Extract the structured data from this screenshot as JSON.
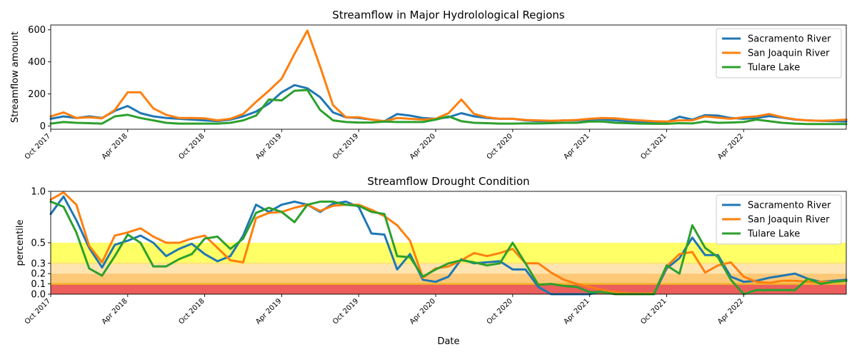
{
  "chart_data": [
    {
      "type": "line",
      "title": "Streamflow in Major Hydrolological Regions",
      "xlabel": "",
      "ylabel": "Streamflow amount",
      "xlim": [
        "2017-10",
        "2022-12"
      ],
      "ylim": [
        -20,
        630
      ],
      "yticks": [
        0,
        200,
        400,
        600
      ],
      "xticks": [
        "2017-10",
        "2018-04",
        "2018-10",
        "2019-04",
        "2019-10",
        "2020-04",
        "2020-10",
        "2021-04",
        "2021-10",
        "2022-04"
      ],
      "xtick_labels": [
        "Oct 2017",
        "Apr 2018",
        "Oct 2018",
        "Apr 2019",
        "Oct 2019",
        "Apr 2020",
        "Oct 2020",
        "Apr 2021",
        "Oct 2021",
        "Apr 2022"
      ],
      "legend": "top-right",
      "x": [
        "2017-10",
        "2017-11",
        "2017-12",
        "2018-01",
        "2018-02",
        "2018-03",
        "2018-04",
        "2018-05",
        "2018-06",
        "2018-07",
        "2018-08",
        "2018-09",
        "2018-10",
        "2018-11",
        "2018-12",
        "2019-01",
        "2019-02",
        "2019-03",
        "2019-04",
        "2019-05",
        "2019-06",
        "2019-07",
        "2019-08",
        "2019-09",
        "2019-10",
        "2019-11",
        "2019-12",
        "2020-01",
        "2020-02",
        "2020-03",
        "2020-04",
        "2020-05",
        "2020-06",
        "2020-07",
        "2020-08",
        "2020-09",
        "2020-10",
        "2020-11",
        "2020-12",
        "2021-01",
        "2021-02",
        "2021-03",
        "2021-04",
        "2021-05",
        "2021-06",
        "2021-07",
        "2021-08",
        "2021-09",
        "2021-10",
        "2021-11",
        "2021-12",
        "2022-01",
        "2022-02",
        "2022-03",
        "2022-04",
        "2022-05",
        "2022-06",
        "2022-07",
        "2022-08",
        "2022-09",
        "2022-10",
        "2022-11",
        "2022-12"
      ],
      "series": [
        {
          "name": "Sacramento River",
          "color": "#1f77b4",
          "values": [
            45,
            60,
            50,
            60,
            50,
            95,
            125,
            80,
            60,
            50,
            45,
            40,
            35,
            30,
            40,
            60,
            90,
            140,
            210,
            255,
            235,
            180,
            85,
            55,
            50,
            40,
            30,
            75,
            65,
            50,
            45,
            55,
            80,
            60,
            50,
            45,
            45,
            35,
            30,
            30,
            35,
            35,
            40,
            42,
            35,
            30,
            28,
            26,
            24,
            58,
            40,
            68,
            65,
            50,
            45,
            50,
            62,
            52,
            40,
            35,
            32,
            30,
            28
          ]
        },
        {
          "name": "San Joaquin River",
          "color": "#ff7f0e",
          "values": [
            60,
            85,
            50,
            55,
            48,
            100,
            210,
            210,
            110,
            70,
            50,
            50,
            48,
            35,
            45,
            75,
            150,
            220,
            295,
            450,
            595,
            370,
            130,
            55,
            55,
            40,
            30,
            50,
            45,
            40,
            45,
            80,
            165,
            75,
            55,
            45,
            45,
            38,
            35,
            33,
            35,
            38,
            45,
            50,
            48,
            40,
            35,
            30,
            28,
            35,
            35,
            60,
            52,
            45,
            55,
            60,
            75,
            55,
            42,
            35,
            33,
            35,
            40
          ]
        },
        {
          "name": "Tulare Lake",
          "color": "#2ca02c",
          "values": [
            15,
            25,
            20,
            18,
            15,
            60,
            70,
            50,
            35,
            20,
            15,
            15,
            15,
            15,
            20,
            35,
            65,
            165,
            160,
            220,
            225,
            100,
            35,
            25,
            22,
            22,
            28,
            25,
            25,
            25,
            40,
            60,
            30,
            20,
            18,
            15,
            15,
            17,
            16,
            18,
            20,
            20,
            28,
            28,
            20,
            18,
            15,
            14,
            14,
            18,
            16,
            28,
            20,
            22,
            25,
            40,
            30,
            20,
            15,
            12,
            12,
            12,
            12
          ]
        }
      ]
    },
    {
      "type": "line",
      "title": "Streamflow Drought Condition",
      "xlabel": "Date",
      "ylabel": "percentile",
      "xlim": [
        "2017-10",
        "2022-12"
      ],
      "ylim": [
        0,
        1.0
      ],
      "yticks": [
        0.0,
        0.1,
        0.2,
        0.3,
        0.5,
        1.0
      ],
      "ytick_labels": [
        "0.0",
        "0.1",
        "0.2",
        "0.3",
        "0.5",
        "1.0"
      ],
      "xticks": [
        "2017-10",
        "2018-04",
        "2018-10",
        "2019-04",
        "2019-10",
        "2020-04",
        "2020-10",
        "2021-04",
        "2021-10",
        "2022-04"
      ],
      "xtick_labels": [
        "Oct 2017",
        "Apr 2018",
        "Oct 2018",
        "Apr 2019",
        "Oct 2019",
        "Apr 2020",
        "Oct 2020",
        "Apr 2021",
        "Oct 2021",
        "Apr 2022"
      ],
      "legend": "top-right",
      "bands": [
        {
          "y0": 0.3,
          "y1": 0.5,
          "color": "#ffff66"
        },
        {
          "y0": 0.2,
          "y1": 0.3,
          "color": "#fde4b0"
        },
        {
          "y0": 0.1,
          "y1": 0.2,
          "color": "#fdc877"
        },
        {
          "y0": 0.0,
          "y1": 0.1,
          "color": "#ec5e5c"
        }
      ],
      "band_lines": [
        {
          "y": 0.3,
          "color": "#ffe680"
        },
        {
          "y": 0.1,
          "color": "#f0b429"
        }
      ],
      "x": [
        "2017-10",
        "2017-11",
        "2017-12",
        "2018-01",
        "2018-02",
        "2018-03",
        "2018-04",
        "2018-05",
        "2018-06",
        "2018-07",
        "2018-08",
        "2018-09",
        "2018-10",
        "2018-11",
        "2018-12",
        "2019-01",
        "2019-02",
        "2019-03",
        "2019-04",
        "2019-05",
        "2019-06",
        "2019-07",
        "2019-08",
        "2019-09",
        "2019-10",
        "2019-11",
        "2019-12",
        "2020-01",
        "2020-02",
        "2020-03",
        "2020-04",
        "2020-05",
        "2020-06",
        "2020-07",
        "2020-08",
        "2020-09",
        "2020-10",
        "2020-11",
        "2020-12",
        "2021-01",
        "2021-02",
        "2021-03",
        "2021-04",
        "2021-05",
        "2021-06",
        "2021-07",
        "2021-08",
        "2021-09",
        "2021-10",
        "2021-11",
        "2021-12",
        "2022-01",
        "2022-02",
        "2022-03",
        "2022-04",
        "2022-05",
        "2022-06",
        "2022-07",
        "2022-08",
        "2022-09",
        "2022-10",
        "2022-11",
        "2022-12"
      ],
      "series": [
        {
          "name": "Sacramento River",
          "color": "#1f77b4",
          "values": [
            0.78,
            0.95,
            0.72,
            0.45,
            0.26,
            0.48,
            0.52,
            0.57,
            0.5,
            0.37,
            0.44,
            0.49,
            0.39,
            0.32,
            0.37,
            0.57,
            0.87,
            0.8,
            0.87,
            0.9,
            0.87,
            0.8,
            0.88,
            0.9,
            0.85,
            0.59,
            0.58,
            0.24,
            0.39,
            0.14,
            0.12,
            0.17,
            0.34,
            0.3,
            0.31,
            0.32,
            0.24,
            0.24,
            0.07,
            0.0,
            0.0,
            0.0,
            0.0,
            0.03,
            0.01,
            0.01,
            0.01,
            0.0,
            0.25,
            0.35,
            0.55,
            0.38,
            0.38,
            0.17,
            0.12,
            0.13,
            0.16,
            0.18,
            0.2,
            0.15,
            0.12,
            0.13,
            0.14
          ]
        },
        {
          "name": "San Joaquin River",
          "color": "#ff7f0e",
          "values": [
            0.92,
            0.99,
            0.87,
            0.47,
            0.31,
            0.57,
            0.6,
            0.64,
            0.56,
            0.5,
            0.5,
            0.54,
            0.57,
            0.45,
            0.33,
            0.31,
            0.74,
            0.79,
            0.8,
            0.84,
            0.87,
            0.81,
            0.86,
            0.87,
            0.87,
            0.82,
            0.76,
            0.67,
            0.52,
            0.16,
            0.25,
            0.27,
            0.33,
            0.4,
            0.37,
            0.4,
            0.44,
            0.3,
            0.3,
            0.21,
            0.14,
            0.1,
            0.07,
            0.04,
            0.02,
            0.01,
            0.01,
            0.01,
            0.27,
            0.39,
            0.41,
            0.21,
            0.28,
            0.31,
            0.17,
            0.12,
            0.11,
            0.13,
            0.13,
            0.12,
            0.12,
            0.12,
            0.13
          ]
        },
        {
          "name": "Tulare Lake",
          "color": "#2ca02c",
          "values": [
            0.9,
            0.85,
            0.6,
            0.25,
            0.18,
            0.37,
            0.58,
            0.5,
            0.27,
            0.27,
            0.34,
            0.39,
            0.54,
            0.56,
            0.44,
            0.54,
            0.79,
            0.84,
            0.8,
            0.7,
            0.87,
            0.9,
            0.9,
            0.87,
            0.86,
            0.8,
            0.78,
            0.37,
            0.36,
            0.17,
            0.24,
            0.3,
            0.33,
            0.31,
            0.28,
            0.3,
            0.5,
            0.3,
            0.09,
            0.1,
            0.08,
            0.07,
            0.02,
            0.02,
            0.0,
            0.0,
            0.0,
            0.0,
            0.28,
            0.2,
            0.67,
            0.45,
            0.36,
            0.14,
            0.0,
            0.04,
            0.04,
            0.04,
            0.04,
            0.15,
            0.1,
            0.12,
            0.13
          ]
        }
      ]
    }
  ]
}
